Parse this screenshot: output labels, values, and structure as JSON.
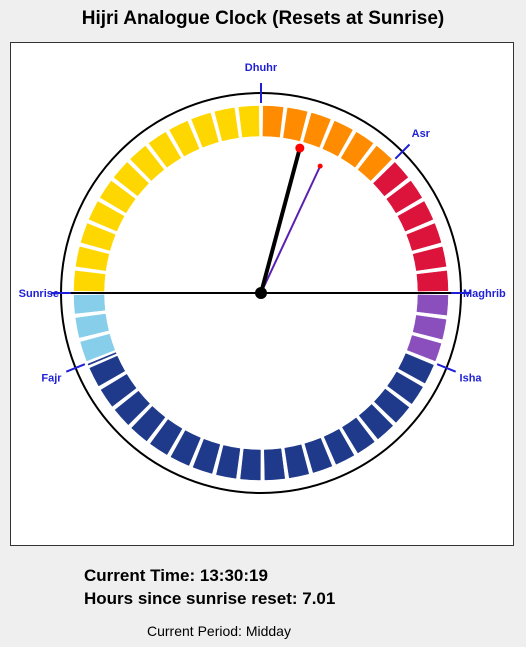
{
  "title": "Hijri Analogue Clock (Resets at Sunrise)",
  "clock": {
    "markers": [
      {
        "label": "Dhuhr",
        "angle_deg": 0,
        "anchor": "middle"
      },
      {
        "label": "Asr",
        "angle_deg": 45,
        "anchor": "middle"
      },
      {
        "label": "Maghrib",
        "angle_deg": 90,
        "anchor": "start"
      },
      {
        "label": "Isha",
        "angle_deg": 112,
        "anchor": "middle"
      },
      {
        "label": "Sunrise",
        "angle_deg": 270,
        "anchor": "end"
      },
      {
        "label": "Fajr",
        "angle_deg": 248,
        "anchor": "middle"
      }
    ],
    "segment_colors": {
      "sunrise_to_dhuhr": "#ffd700",
      "dhuhr_to_asr": "#ff8c00",
      "asr_to_maghrib": "#dc143c",
      "maghrib_to_isha": "#8a4fbd",
      "isha_to_fajr": "#1f3a8a",
      "fajr_to_sunrise": "#87ceeb"
    },
    "hour_hand_color": "#000000",
    "minute_hand_color": "#5a1fb0",
    "hour_hand_angle_deg": 15,
    "minute_hand_angle_deg": 25
  },
  "status": {
    "current_time": "Current Time: 13:30:19",
    "hours_since": "Hours since sunrise reset: 7.01",
    "period": "Current Period: Midday"
  }
}
